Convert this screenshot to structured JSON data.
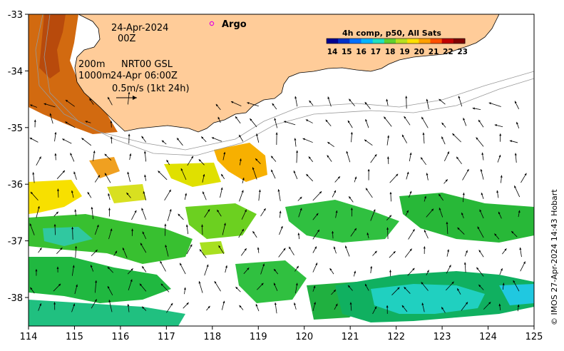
{
  "map": {
    "date_line": "24-Apr-2024",
    "time_line": "00Z",
    "contour_labels": [
      "200m",
      "1000m"
    ],
    "product": "NRT00 GSL",
    "current_time": "24-Apr 06:00Z",
    "scale_label": "0.5m/s (1kt 24h)",
    "argo_label": "Argo",
    "colorbar_title": "4h comp, p50, All Sats",
    "colorbar_ticks": [
      "14",
      "15",
      "16",
      "17",
      "18",
      "19",
      "20",
      "21",
      "22",
      "23"
    ],
    "colorbar_colors": [
      "#00008f",
      "#0030c8",
      "#0070ff",
      "#00b4ff",
      "#20e0c0",
      "#60d030",
      "#b8e020",
      "#ffe000",
      "#ffa000",
      "#ff5000",
      "#c00000",
      "#800000"
    ],
    "credit": "© IMOS 27-Apr-2024 14:43 Hobart",
    "x_ticks": [
      "114",
      "115",
      "116",
      "117",
      "118",
      "119",
      "120",
      "121",
      "122",
      "123",
      "124",
      "125"
    ],
    "y_ticks": [
      "-33",
      "-34",
      "-35",
      "-36",
      "-37",
      "-38"
    ],
    "land_color": "#ffcc99"
  }
}
